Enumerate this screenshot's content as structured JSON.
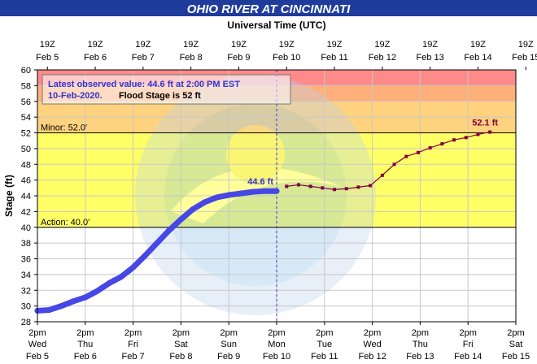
{
  "chart_data": {
    "type": "line",
    "title": "OHIO RIVER AT CINCINNATI",
    "top_axis_title": "Universal Time (UTC)",
    "ylabel": "Stage (ft)",
    "ylim": [
      28,
      60
    ],
    "y_ticks": [
      28,
      30,
      32,
      34,
      36,
      38,
      40,
      42,
      44,
      46,
      48,
      50,
      52,
      54,
      56,
      58,
      60
    ],
    "xlim": [
      "2020-02-05T14:00",
      "2020-02-15T14:00"
    ],
    "grid": true,
    "colors": {
      "header_bg": "#1f3c9c",
      "plot_bg": "#ffffff",
      "action_band": "#ffff66",
      "minor_band": "#ffd27f",
      "moderate_band": "#ffb07a",
      "major_band": "#ff8a8a",
      "observed": "#4747e6",
      "forecast": "#800040",
      "annotation_text": "#3333cc"
    },
    "top_ticks": [
      {
        "l1": "19Z",
        "l2": "Feb 5"
      },
      {
        "l1": "19Z",
        "l2": "Feb 6"
      },
      {
        "l1": "19Z",
        "l2": "Feb 7"
      },
      {
        "l1": "19Z",
        "l2": "Feb 8"
      },
      {
        "l1": "19Z",
        "l2": "Feb 9"
      },
      {
        "l1": "19Z",
        "l2": "Feb 10"
      },
      {
        "l1": "19Z",
        "l2": "Feb 11"
      },
      {
        "l1": "19Z",
        "l2": "Feb 12"
      },
      {
        "l1": "19Z",
        "l2": "Feb 13"
      },
      {
        "l1": "19Z",
        "l2": "Feb 14"
      },
      {
        "l1": "19Z",
        "l2": "Feb 15"
      }
    ],
    "bottom_ticks": [
      {
        "l1": "2pm",
        "l2": "Wed",
        "l3": "Feb 5"
      },
      {
        "l1": "2pm",
        "l2": "Thu",
        "l3": "Feb 6"
      },
      {
        "l1": "2pm",
        "l2": "Fri",
        "l3": "Feb 7"
      },
      {
        "l1": "2pm",
        "l2": "Sat",
        "l3": "Feb 8"
      },
      {
        "l1": "2pm",
        "l2": "Sun",
        "l3": "Feb 9"
      },
      {
        "l1": "2pm",
        "l2": "Mon",
        "l3": "Feb 10"
      },
      {
        "l1": "2pm",
        "l2": "Tue",
        "l3": "Feb 11"
      },
      {
        "l1": "2pm",
        "l2": "Wed",
        "l3": "Feb 12"
      },
      {
        "l1": "2pm",
        "l2": "Thu",
        "l3": "Feb 13"
      },
      {
        "l1": "2pm",
        "l2": "Fri",
        "l3": "Feb 14"
      },
      {
        "l1": "2pm",
        "l2": "Sat",
        "l3": "Feb 15"
      }
    ],
    "flood_bands": [
      {
        "name": "action",
        "from": 40,
        "to": 52
      },
      {
        "name": "minor",
        "from": 52,
        "to": 56
      },
      {
        "name": "moderate",
        "from": 56,
        "to": 58
      },
      {
        "name": "major",
        "from": 58,
        "to": 60
      }
    ],
    "thresholds": [
      {
        "label": "Minor:  52.0'",
        "value": 52
      },
      {
        "label": "Action:  40.0'",
        "value": 40
      }
    ],
    "info_box": {
      "observed_text": "Latest observed value:  44.6 ft at 2:00 PM EST",
      "date_text": "10-Feb-2020.",
      "flood_text": "Flood Stage is 52 ft"
    },
    "observed_label": "44.6 ft",
    "forecast_label": "52.1 ft",
    "series": [
      {
        "role": "observed",
        "x": [
          "2020-02-05T14:00",
          "2020-02-05T20:00",
          "2020-02-06T02:00",
          "2020-02-06T08:00",
          "2020-02-06T14:00",
          "2020-02-06T20:00",
          "2020-02-07T02:00",
          "2020-02-07T08:00",
          "2020-02-07T14:00",
          "2020-02-07T20:00",
          "2020-02-08T02:00",
          "2020-02-08T08:00",
          "2020-02-08T14:00",
          "2020-02-08T20:00",
          "2020-02-09T02:00",
          "2020-02-09T08:00",
          "2020-02-09T14:00",
          "2020-02-09T20:00",
          "2020-02-10T02:00",
          "2020-02-10T08:00",
          "2020-02-10T14:00"
        ],
        "y": [
          29.4,
          29.5,
          30.0,
          30.6,
          31.1,
          31.9,
          32.9,
          33.7,
          34.9,
          36.4,
          38.0,
          39.6,
          41.0,
          42.3,
          43.2,
          43.8,
          44.1,
          44.3,
          44.5,
          44.6,
          44.6
        ]
      },
      {
        "role": "forecast",
        "x": [
          "2020-02-10T19:00",
          "2020-02-11T01:00",
          "2020-02-11T07:00",
          "2020-02-11T13:00",
          "2020-02-11T19:00",
          "2020-02-12T01:00",
          "2020-02-12T07:00",
          "2020-02-12T13:00",
          "2020-02-12T19:00",
          "2020-02-13T01:00",
          "2020-02-13T07:00",
          "2020-02-13T13:00",
          "2020-02-13T19:00",
          "2020-02-14T01:00",
          "2020-02-14T07:00",
          "2020-02-14T13:00",
          "2020-02-14T19:00",
          "2020-02-15T01:00"
        ],
        "y": [
          45.2,
          45.4,
          45.2,
          45.0,
          44.8,
          44.9,
          45.1,
          45.3,
          46.6,
          48.0,
          49.0,
          49.5,
          50.1,
          50.6,
          51.1,
          51.4,
          51.8,
          52.1
        ]
      }
    ]
  }
}
